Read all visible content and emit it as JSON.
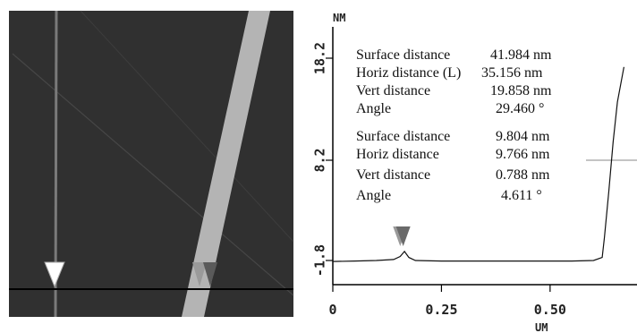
{
  "image_panel": {
    "background": "#303030",
    "stripe_color": "#b4b4b4"
  },
  "chart_data": {
    "type": "line",
    "title": "",
    "xlabel": "UM",
    "ylabel": "NM",
    "xlim": [
      0,
      0.7
    ],
    "ylim": [
      -1.8,
      19.5
    ],
    "x_ticks": [
      0,
      0.25,
      0.5
    ],
    "x_tick_labels": [
      "0",
      "0.25",
      "0.50"
    ],
    "y_ticks": [
      -1.8,
      8.2,
      18.2
    ],
    "y_tick_labels": [
      "-1.8",
      "8.2",
      "18.2"
    ],
    "series": [
      {
        "x": [
          0.0,
          0.05,
          0.1,
          0.14,
          0.155,
          0.165,
          0.175,
          0.19,
          0.25,
          0.35,
          0.45,
          0.55,
          0.6,
          0.62,
          0.625,
          0.635,
          0.645,
          0.655,
          0.67
        ],
        "y": [
          -1.9,
          -1.85,
          -1.8,
          -1.7,
          -1.4,
          -0.9,
          -1.5,
          -1.8,
          -1.85,
          -1.85,
          -1.85,
          -1.85,
          -1.8,
          -1.5,
          0.5,
          5.0,
          10.0,
          14.0,
          17.5
        ]
      }
    ],
    "markers": [
      {
        "x": 0.155,
        "color": "#9a9a9a"
      },
      {
        "x": 0.162,
        "color": "#6a6a6a"
      }
    ],
    "cursor_line_y": 8.2,
    "measurements": [
      {
        "label": "Surface distance",
        "value": "41.984 nm"
      },
      {
        "label": "Horiz distance (L)",
        "value": "35.156 nm"
      },
      {
        "label": "Vert distance",
        "value": "19.858 nm"
      },
      {
        "label": "Angle",
        "value": "29.460 °"
      },
      {
        "label": "Surface distance",
        "value": "9.804 nm"
      },
      {
        "label": "Horiz distance",
        "value": "9.766 nm"
      },
      {
        "label": "Vert distance",
        "value": "0.788 nm"
      },
      {
        "label": "Angle",
        "value": "4.611 °"
      }
    ]
  }
}
